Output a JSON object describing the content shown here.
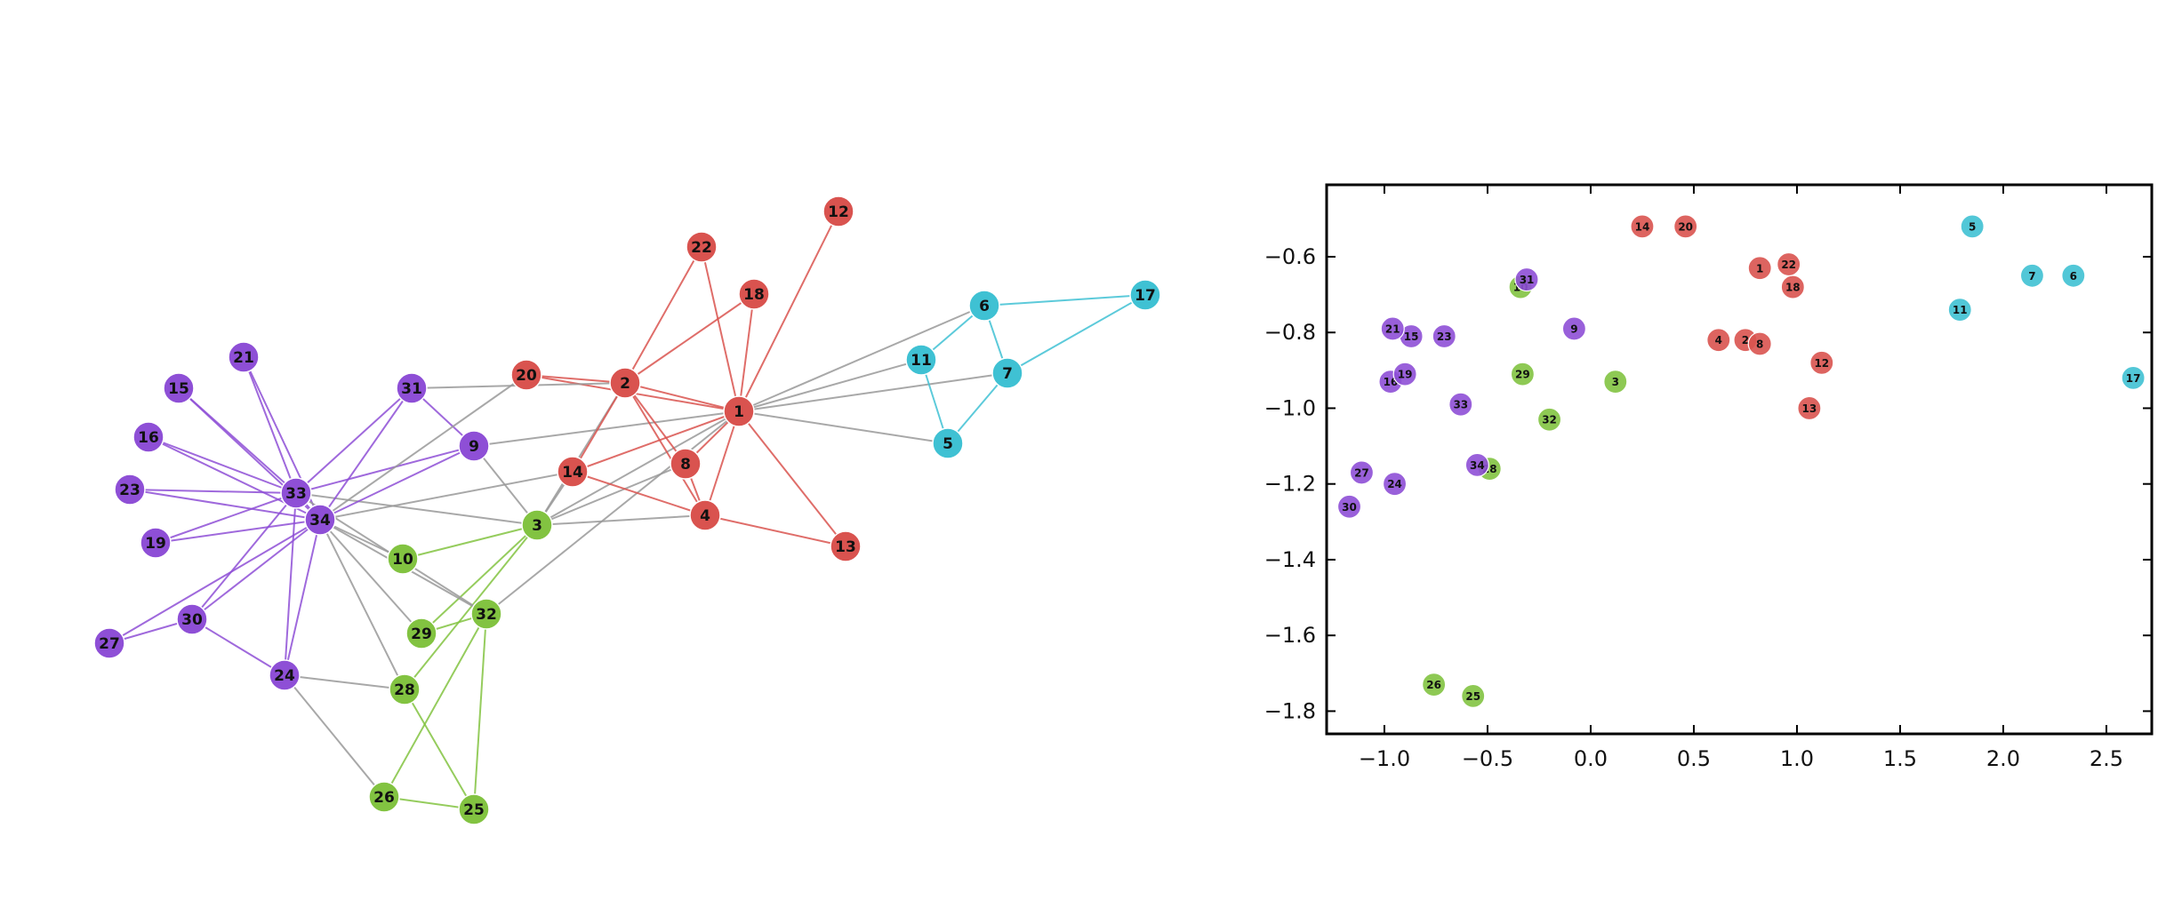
{
  "colors": {
    "red": "#d9534f",
    "purple": "#8e4fd6",
    "green": "#82c341",
    "cyan": "#3fc1d3",
    "edge_gray": "#999999"
  },
  "chart_data": [
    {
      "type": "network",
      "title": "",
      "nodes": [
        {
          "id": "1",
          "group": "red"
        },
        {
          "id": "2",
          "group": "red"
        },
        {
          "id": "3",
          "group": "green"
        },
        {
          "id": "4",
          "group": "red"
        },
        {
          "id": "5",
          "group": "cyan"
        },
        {
          "id": "6",
          "group": "cyan"
        },
        {
          "id": "7",
          "group": "cyan"
        },
        {
          "id": "8",
          "group": "red"
        },
        {
          "id": "9",
          "group": "purple"
        },
        {
          "id": "10",
          "group": "green"
        },
        {
          "id": "11",
          "group": "cyan"
        },
        {
          "id": "12",
          "group": "red"
        },
        {
          "id": "13",
          "group": "red"
        },
        {
          "id": "14",
          "group": "red"
        },
        {
          "id": "15",
          "group": "purple"
        },
        {
          "id": "16",
          "group": "purple"
        },
        {
          "id": "17",
          "group": "cyan"
        },
        {
          "id": "18",
          "group": "red"
        },
        {
          "id": "19",
          "group": "purple"
        },
        {
          "id": "20",
          "group": "red"
        },
        {
          "id": "21",
          "group": "purple"
        },
        {
          "id": "22",
          "group": "red"
        },
        {
          "id": "23",
          "group": "purple"
        },
        {
          "id": "24",
          "group": "purple"
        },
        {
          "id": "25",
          "group": "green"
        },
        {
          "id": "26",
          "group": "green"
        },
        {
          "id": "27",
          "group": "purple"
        },
        {
          "id": "28",
          "group": "green"
        },
        {
          "id": "29",
          "group": "green"
        },
        {
          "id": "30",
          "group": "purple"
        },
        {
          "id": "31",
          "group": "purple"
        },
        {
          "id": "32",
          "group": "green"
        },
        {
          "id": "33",
          "group": "purple"
        },
        {
          "id": "34",
          "group": "purple"
        }
      ],
      "edges": [
        [
          "1",
          "2"
        ],
        [
          "1",
          "3"
        ],
        [
          "1",
          "4"
        ],
        [
          "1",
          "5"
        ],
        [
          "1",
          "6"
        ],
        [
          "1",
          "7"
        ],
        [
          "1",
          "8"
        ],
        [
          "1",
          "9"
        ],
        [
          "1",
          "11"
        ],
        [
          "1",
          "12"
        ],
        [
          "1",
          "13"
        ],
        [
          "1",
          "14"
        ],
        [
          "1",
          "18"
        ],
        [
          "1",
          "20"
        ],
        [
          "1",
          "22"
        ],
        [
          "1",
          "32"
        ],
        [
          "2",
          "3"
        ],
        [
          "2",
          "4"
        ],
        [
          "2",
          "8"
        ],
        [
          "2",
          "14"
        ],
        [
          "2",
          "18"
        ],
        [
          "2",
          "20"
        ],
        [
          "2",
          "22"
        ],
        [
          "2",
          "31"
        ],
        [
          "3",
          "4"
        ],
        [
          "3",
          "8"
        ],
        [
          "3",
          "9"
        ],
        [
          "3",
          "10"
        ],
        [
          "3",
          "14"
        ],
        [
          "3",
          "28"
        ],
        [
          "3",
          "29"
        ],
        [
          "3",
          "33"
        ],
        [
          "4",
          "8"
        ],
        [
          "4",
          "13"
        ],
        [
          "4",
          "14"
        ],
        [
          "5",
          "7"
        ],
        [
          "5",
          "11"
        ],
        [
          "6",
          "7"
        ],
        [
          "6",
          "11"
        ],
        [
          "6",
          "17"
        ],
        [
          "7",
          "17"
        ],
        [
          "9",
          "31"
        ],
        [
          "9",
          "33"
        ],
        [
          "9",
          "34"
        ],
        [
          "10",
          "34"
        ],
        [
          "14",
          "34"
        ],
        [
          "15",
          "33"
        ],
        [
          "15",
          "34"
        ],
        [
          "16",
          "33"
        ],
        [
          "16",
          "34"
        ],
        [
          "19",
          "33"
        ],
        [
          "19",
          "34"
        ],
        [
          "20",
          "34"
        ],
        [
          "21",
          "33"
        ],
        [
          "21",
          "34"
        ],
        [
          "23",
          "33"
        ],
        [
          "23",
          "34"
        ],
        [
          "24",
          "26"
        ],
        [
          "24",
          "28"
        ],
        [
          "24",
          "30"
        ],
        [
          "24",
          "33"
        ],
        [
          "24",
          "34"
        ],
        [
          "25",
          "26"
        ],
        [
          "25",
          "28"
        ],
        [
          "25",
          "32"
        ],
        [
          "26",
          "32"
        ],
        [
          "27",
          "30"
        ],
        [
          "27",
          "34"
        ],
        [
          "28",
          "34"
        ],
        [
          "29",
          "32"
        ],
        [
          "29",
          "34"
        ],
        [
          "30",
          "33"
        ],
        [
          "30",
          "34"
        ],
        [
          "31",
          "33"
        ],
        [
          "31",
          "34"
        ],
        [
          "32",
          "33"
        ],
        [
          "32",
          "34"
        ],
        [
          "33",
          "34"
        ]
      ]
    },
    {
      "type": "scatter",
      "title": "",
      "xlabel": "",
      "ylabel": "",
      "xlim": [
        -1.28,
        2.72
      ],
      "ylim": [
        -1.86,
        -0.41
      ],
      "xticks": [
        -1.0,
        -0.5,
        0.0,
        0.5,
        1.0,
        1.5,
        2.0,
        2.5
      ],
      "yticks": [
        -0.6,
        -0.8,
        -1.0,
        -1.2,
        -1.4,
        -1.6,
        -1.8
      ],
      "xtick_labels": [
        "−1.0",
        "−0.5",
        "0.0",
        "0.5",
        "1.0",
        "1.5",
        "2.0",
        "2.5"
      ],
      "ytick_labels": [
        "−0.6",
        "−0.8",
        "−1.0",
        "−1.2",
        "−1.4",
        "−1.6",
        "−1.8"
      ],
      "points": [
        {
          "label": "1",
          "group": "red",
          "x": 0.82,
          "y": -0.63
        },
        {
          "label": "2",
          "group": "red",
          "x": 0.75,
          "y": -0.82
        },
        {
          "label": "3",
          "group": "green",
          "x": 0.12,
          "y": -0.93
        },
        {
          "label": "4",
          "group": "red",
          "x": 0.62,
          "y": -0.82
        },
        {
          "label": "5",
          "group": "cyan",
          "x": 1.85,
          "y": -0.52
        },
        {
          "label": "6",
          "group": "cyan",
          "x": 2.34,
          "y": -0.65
        },
        {
          "label": "7",
          "group": "cyan",
          "x": 2.14,
          "y": -0.65
        },
        {
          "label": "8",
          "group": "red",
          "x": 0.82,
          "y": -0.83
        },
        {
          "label": "9",
          "group": "purple",
          "x": -0.08,
          "y": -0.79
        },
        {
          "label": "10",
          "group": "green",
          "x": -0.34,
          "y": -0.68
        },
        {
          "label": "11",
          "group": "cyan",
          "x": 1.79,
          "y": -0.74
        },
        {
          "label": "12",
          "group": "red",
          "x": 1.12,
          "y": -0.88
        },
        {
          "label": "13",
          "group": "red",
          "x": 1.06,
          "y": -1.0
        },
        {
          "label": "14",
          "group": "red",
          "x": 0.25,
          "y": -0.52
        },
        {
          "label": "15",
          "group": "purple",
          "x": -0.87,
          "y": -0.81
        },
        {
          "label": "16",
          "group": "purple",
          "x": -0.97,
          "y": -0.93
        },
        {
          "label": "17",
          "group": "cyan",
          "x": 2.63,
          "y": -0.92
        },
        {
          "label": "18",
          "group": "red",
          "x": 0.98,
          "y": -0.68
        },
        {
          "label": "19",
          "group": "purple",
          "x": -0.9,
          "y": -0.91
        },
        {
          "label": "20",
          "group": "red",
          "x": 0.46,
          "y": -0.52
        },
        {
          "label": "21",
          "group": "purple",
          "x": -0.96,
          "y": -0.79
        },
        {
          "label": "22",
          "group": "red",
          "x": 0.96,
          "y": -0.62
        },
        {
          "label": "23",
          "group": "purple",
          "x": -0.71,
          "y": -0.81
        },
        {
          "label": "24",
          "group": "purple",
          "x": -0.95,
          "y": -1.2
        },
        {
          "label": "25",
          "group": "green",
          "x": -0.57,
          "y": -1.76
        },
        {
          "label": "26",
          "group": "green",
          "x": -0.76,
          "y": -1.73
        },
        {
          "label": "27",
          "group": "purple",
          "x": -1.11,
          "y": -1.17
        },
        {
          "label": "28",
          "group": "green",
          "x": -0.49,
          "y": -1.16
        },
        {
          "label": "29",
          "group": "green",
          "x": -0.33,
          "y": -0.91
        },
        {
          "label": "30",
          "group": "purple",
          "x": -1.17,
          "y": -1.26
        },
        {
          "label": "31",
          "group": "purple",
          "x": -0.31,
          "y": -0.66
        },
        {
          "label": "32",
          "group": "green",
          "x": -0.2,
          "y": -1.03
        },
        {
          "label": "33",
          "group": "purple",
          "x": -0.63,
          "y": -0.99
        },
        {
          "label": "34",
          "group": "purple",
          "x": -0.55,
          "y": -1.15
        }
      ]
    }
  ]
}
